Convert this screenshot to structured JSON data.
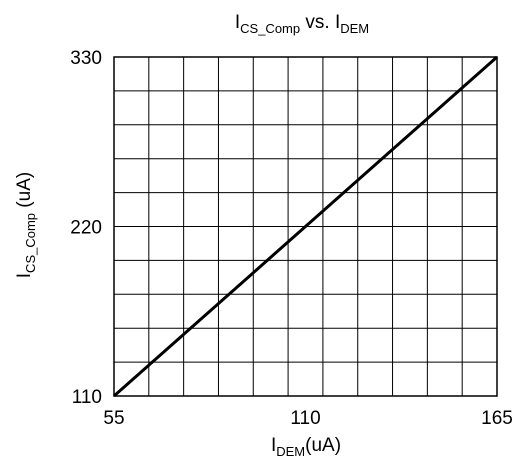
{
  "chart_data": {
    "type": "line",
    "title": {
      "main": "I",
      "sub1": "CS_Comp",
      "mid": " vs. I",
      "sub2": "DEM"
    },
    "xlabel": {
      "main": "I",
      "sub": "DEM",
      "unit": "(uA)"
    },
    "ylabel": {
      "main": "I",
      "sub": "CS_Comp",
      "unit": " (uA)"
    },
    "xlim": [
      55,
      165
    ],
    "ylim": [
      110,
      330
    ],
    "x_ticks": [
      55,
      110,
      165
    ],
    "y_ticks": [
      110,
      220,
      330
    ],
    "x_grid_divisions": 11,
    "y_grid_divisions": 10,
    "grid": true,
    "series": [
      {
        "x": [
          55,
          165
        ],
        "y": [
          110,
          330
        ]
      }
    ]
  }
}
